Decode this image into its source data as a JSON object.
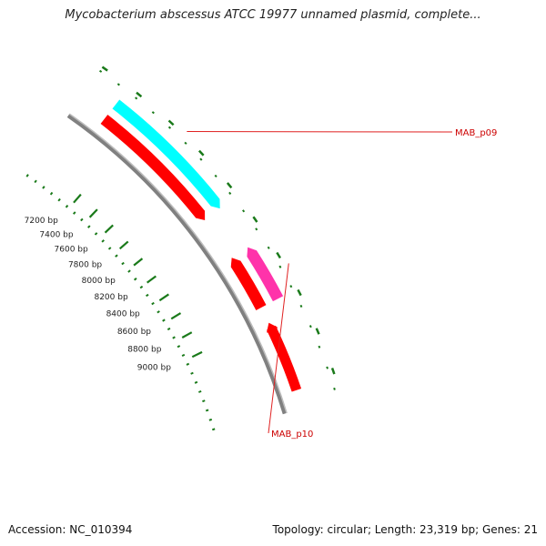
{
  "title": "Mycobacterium abscessus ATCC 19977 unnamed plasmid, complete...",
  "footer": {
    "accession": "Accession: NC_010394",
    "summary": "Topology: circular; Length: 23,319 bp; Genes: 21"
  },
  "colors": {
    "backbone": "#808080",
    "cds": "#ff0000",
    "gene_cyan": "#00ffff",
    "gene_magenta": "#ff33aa",
    "label": "#cc0000",
    "ticks": "#1a7a1a",
    "leader": "#e02020"
  },
  "ruler": {
    "tick_labels": [
      "7200 bp",
      "7400 bp",
      "7600 bp",
      "7800 bp",
      "8000 bp",
      "8200 bp",
      "8400 bp",
      "8600 bp",
      "8800 bp",
      "9000 bp"
    ],
    "tick_positions_bp": [
      7200,
      7400,
      7600,
      7800,
      8000,
      8200,
      8400,
      8600,
      8800,
      9000
    ]
  },
  "features": [
    {
      "name": "MAB_p09",
      "type": "gene",
      "strand": "+",
      "color_key": "gene_cyan",
      "start_bp": 6950,
      "end_bp": 8070
    },
    {
      "name": "MAB_p10",
      "type": "gene",
      "strand": "-",
      "color_key": "gene_magenta",
      "start_bp": 8440,
      "end_bp": 8890
    }
  ],
  "cds": [
    {
      "strand": "+",
      "start_bp": 6950,
      "end_bp": 8070
    },
    {
      "strand": "-",
      "start_bp": 8440,
      "end_bp": 8890
    },
    {
      "strand": "-",
      "start_bp": 9030,
      "end_bp": 9600
    }
  ]
}
